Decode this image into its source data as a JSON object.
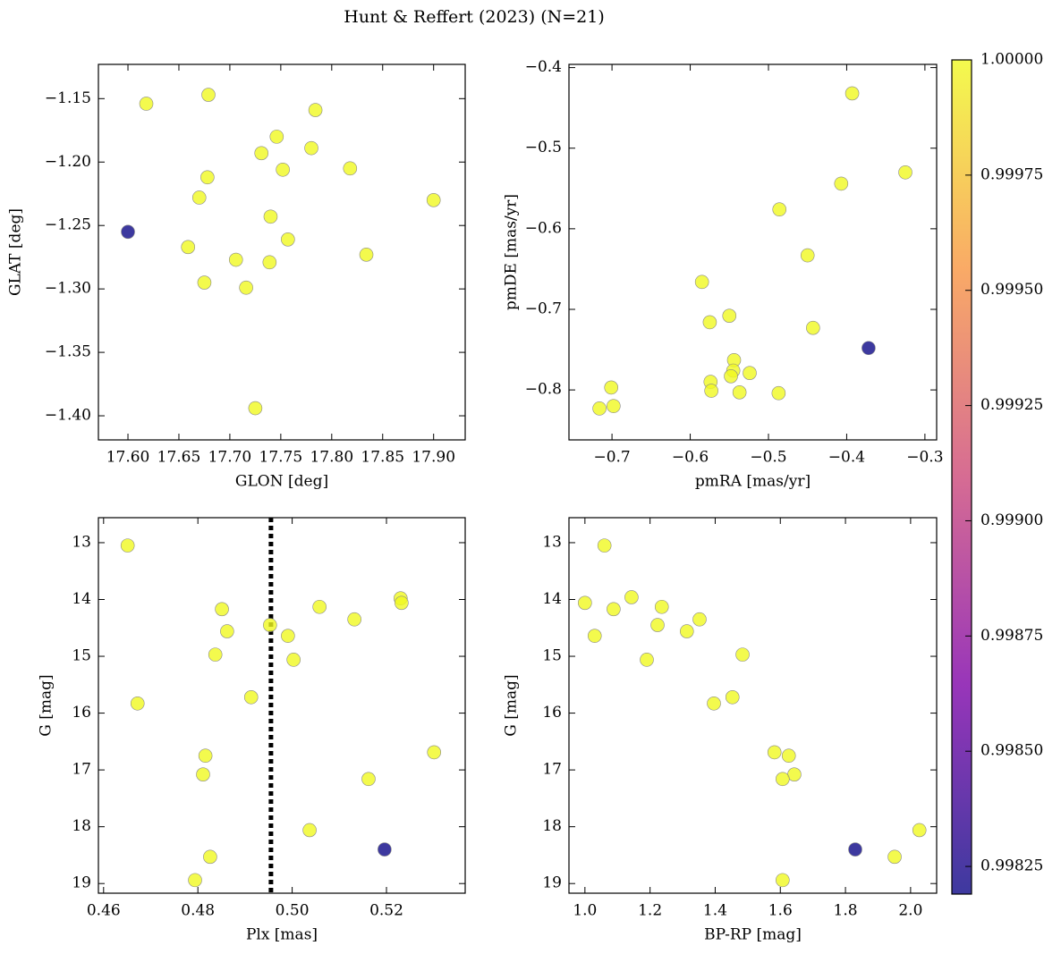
{
  "title": "Hunt & Reffert (2023) (N=21)",
  "colorbar": {
    "colormap": "plasma",
    "clim": [
      0.99819,
      1.0
    ],
    "ticks": [
      0.99825,
      {
        "value": 0.999,
        "label": "0.99900"
      },
      0.99875,
      {
        "value": 0.9985,
        "label": "0.99850"
      },
      0.99925,
      {
        "value": 0.9995,
        "label": "0.99950"
      },
      0.99975,
      {
        "value": 1.0,
        "label": "1.00000"
      }
    ]
  },
  "chart_data": [
    {
      "type": "scatter",
      "xlabel": "GLON [deg]",
      "ylabel": "GLAT [deg]",
      "xlim": [
        17.571,
        17.931
      ],
      "ylim": [
        -1.419,
        -1.123
      ],
      "xticks": [
        {
          "value": 17.6,
          "label": "17.60"
        },
        {
          "value": 17.65,
          "label": "17.65"
        },
        {
          "value": 17.7,
          "label": "17.70"
        },
        {
          "value": 17.75,
          "label": "17.75"
        },
        {
          "value": 17.8,
          "label": "17.80"
        },
        {
          "value": 17.85,
          "label": "17.85"
        },
        {
          "value": 17.9,
          "label": "17.90"
        }
      ],
      "yticks": [
        {
          "value": -1.15,
          "label": "−1.15"
        },
        {
          "value": -1.2,
          "label": "−1.20"
        },
        {
          "value": -1.25,
          "label": "−1.25"
        },
        {
          "value": -1.3,
          "label": "−1.30"
        },
        {
          "value": -1.35,
          "label": "−1.35"
        },
        {
          "value": -1.4,
          "label": "−1.40"
        }
      ],
      "x": [
        17.618,
        17.679,
        17.784,
        17.746,
        17.731,
        17.78,
        17.752,
        17.818,
        17.678,
        17.67,
        17.9,
        17.6,
        17.74,
        17.659,
        17.757,
        17.706,
        17.739,
        17.834,
        17.675,
        17.716,
        17.725
      ],
      "y": [
        -1.154,
        -1.147,
        -1.159,
        -1.18,
        -1.193,
        -1.189,
        -1.206,
        -1.205,
        -1.212,
        -1.228,
        -1.23,
        -1.255,
        -1.243,
        -1.267,
        -1.261,
        -1.277,
        -1.279,
        -1.273,
        -1.295,
        -1.299,
        -1.394
      ],
      "c": [
        1.0,
        1.0,
        1.0,
        1.0,
        1.0,
        1.0,
        1.0,
        1.0,
        1.0,
        1.0,
        1.0,
        0.99819,
        1.0,
        1.0,
        1.0,
        1.0,
        1.0,
        1.0,
        1.0,
        1.0,
        1.0
      ]
    },
    {
      "type": "scatter",
      "xlabel": "pmRA [mas/yr]",
      "ylabel": "pmDE [mas/yr]",
      "xlim": [
        -0.755,
        -0.285
      ],
      "ylim": [
        -0.862,
        -0.396
      ],
      "xticks": [
        {
          "value": -0.7,
          "label": "−0.7"
        },
        {
          "value": -0.6,
          "label": "−0.6"
        },
        {
          "value": -0.5,
          "label": "−0.5"
        },
        {
          "value": -0.4,
          "label": "−0.4"
        },
        {
          "value": -0.3,
          "label": "−0.3"
        }
      ],
      "yticks": [
        {
          "value": -0.4,
          "label": "−0.4"
        },
        {
          "value": -0.5,
          "label": "−0.5"
        },
        {
          "value": -0.6,
          "label": "−0.6"
        },
        {
          "value": -0.7,
          "label": "−0.7"
        },
        {
          "value": -0.8,
          "label": "−0.8"
        }
      ],
      "x": [
        -0.393,
        -0.325,
        -0.407,
        -0.486,
        -0.45,
        -0.585,
        -0.55,
        -0.575,
        -0.443,
        -0.372,
        -0.544,
        -0.545,
        -0.524,
        -0.548,
        -0.574,
        -0.701,
        -0.573,
        -0.537,
        -0.487,
        -0.698,
        -0.716
      ],
      "y": [
        -0.432,
        -0.53,
        -0.544,
        -0.576,
        -0.633,
        -0.666,
        -0.708,
        -0.716,
        -0.723,
        -0.748,
        -0.763,
        -0.776,
        -0.779,
        -0.783,
        -0.79,
        -0.797,
        -0.801,
        -0.803,
        -0.804,
        -0.82,
        -0.823
      ],
      "c": [
        1.0,
        1.0,
        1.0,
        1.0,
        1.0,
        1.0,
        1.0,
        1.0,
        1.0,
        0.99819,
        1.0,
        1.0,
        1.0,
        1.0,
        1.0,
        1.0,
        1.0,
        1.0,
        1.0,
        1.0,
        1.0
      ]
    },
    {
      "type": "scatter",
      "xlabel": "Plx [mas]",
      "ylabel": "G [mag]",
      "xlim": [
        0.4589,
        0.5367
      ],
      "ylim": [
        19.17,
        12.56
      ],
      "vline": 0.4955,
      "xticks": [
        0.46,
        0.48,
        {
          "value": 0.5,
          "label": "0.50"
        },
        0.52
      ],
      "yticks": [
        13,
        14,
        15,
        16,
        17,
        18,
        19
      ],
      "x": [
        0.4651,
        0.523,
        0.5232,
        0.5058,
        0.4851,
        0.5132,
        0.4953,
        0.4862,
        0.4991,
        0.4837,
        0.5003,
        0.4913,
        0.4672,
        0.5301,
        0.4816,
        0.4811,
        0.5162,
        0.5037,
        0.5196,
        0.4826,
        0.4794
      ],
      "y": [
        13.05,
        13.98,
        14.06,
        14.13,
        14.17,
        14.35,
        14.45,
        14.56,
        14.64,
        14.97,
        15.06,
        15.72,
        15.83,
        16.69,
        16.75,
        17.08,
        17.16,
        18.06,
        18.4,
        18.53,
        18.94
      ],
      "c": [
        1.0,
        1.0,
        1.0,
        1.0,
        1.0,
        1.0,
        1.0,
        1.0,
        1.0,
        1.0,
        1.0,
        1.0,
        1.0,
        1.0,
        1.0,
        1.0,
        1.0,
        1.0,
        0.99819,
        1.0,
        1.0
      ]
    },
    {
      "type": "scatter",
      "xlabel": "BP-RP [mag]",
      "ylabel": "G [mag]",
      "xlim": [
        0.951,
        2.08
      ],
      "ylim": [
        19.17,
        12.56
      ],
      "xticks": [
        {
          "value": 1.0,
          "label": "1.0"
        },
        1.2,
        1.4,
        1.6,
        1.8,
        {
          "value": 2.0,
          "label": "2.0"
        }
      ],
      "yticks": [
        13,
        14,
        15,
        16,
        17,
        18,
        19
      ],
      "x": [
        1.06,
        1.0,
        1.143,
        1.236,
        1.088,
        1.03,
        1.223,
        1.352,
        1.313,
        1.484,
        1.19,
        1.453,
        1.396,
        1.582,
        1.626,
        1.643,
        1.607,
        2.027,
        1.83,
        1.951,
        1.607
      ],
      "y": [
        13.05,
        14.06,
        13.96,
        14.13,
        14.17,
        14.64,
        14.45,
        14.35,
        14.56,
        14.97,
        15.06,
        15.72,
        15.83,
        16.69,
        16.75,
        17.08,
        17.16,
        18.06,
        18.4,
        18.53,
        18.94
      ],
      "c": [
        1.0,
        1.0,
        1.0,
        1.0,
        1.0,
        1.0,
        1.0,
        1.0,
        1.0,
        1.0,
        1.0,
        1.0,
        1.0,
        1.0,
        1.0,
        1.0,
        1.0,
        1.0,
        0.99819,
        1.0,
        1.0
      ]
    }
  ]
}
